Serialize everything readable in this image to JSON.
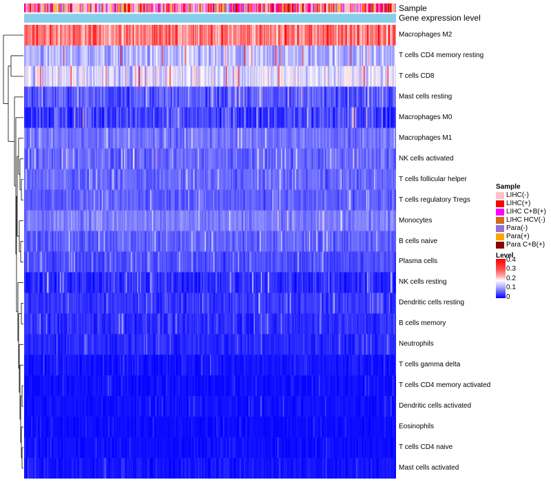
{
  "annotations": {
    "sample_label": "Sample",
    "gene_label": "Gene expression level"
  },
  "legend": {
    "sample_title": "Sample",
    "sample_items": [
      {
        "label": "LIHC(-)",
        "color": "#ffc0cb"
      },
      {
        "label": "LIHC(+)",
        "color": "#ff0000"
      },
      {
        "label": "LIHC C+B(+)",
        "color": "#ff00ff"
      },
      {
        "label": "LIHC HCV(-)",
        "color": "#d2691e"
      },
      {
        "label": "Para(-)",
        "color": "#9370db"
      },
      {
        "label": "Para(+)",
        "color": "#ffa500"
      },
      {
        "label": "Para C+B(+)",
        "color": "#8b0000"
      }
    ],
    "level_title": "Level",
    "level_ticks": [
      "0.4",
      "0.3",
      "0.2",
      "0.1",
      "0"
    ]
  },
  "chart_data": {
    "type": "heatmap",
    "title": "",
    "color_scale": {
      "low": "#0000ff",
      "mid": "#ffffff",
      "high": "#ff0000",
      "range": [
        0,
        0.4
      ]
    },
    "annotation_gene_color": "#87ceeb",
    "rows": [
      {
        "name": "Macrophages M2",
        "mean": 0.3,
        "spread": 0.08
      },
      {
        "name": "T cells CD4 memory resting",
        "mean": 0.14,
        "spread": 0.06
      },
      {
        "name": "T cells CD8",
        "mean": 0.18,
        "spread": 0.07
      },
      {
        "name": "Mast cells resting",
        "mean": 0.07,
        "spread": 0.05
      },
      {
        "name": "Macrophages M0",
        "mean": 0.05,
        "spread": 0.06
      },
      {
        "name": "Macrophages M1",
        "mean": 0.09,
        "spread": 0.035
      },
      {
        "name": "NK cells activated",
        "mean": 0.08,
        "spread": 0.04
      },
      {
        "name": "T cells follicular helper",
        "mean": 0.08,
        "spread": 0.035
      },
      {
        "name": "T cells regulatory  Tregs",
        "mean": 0.075,
        "spread": 0.035
      },
      {
        "name": "Monocytes",
        "mean": 0.1,
        "spread": 0.035
      },
      {
        "name": "B cells naive",
        "mean": 0.075,
        "spread": 0.035
      },
      {
        "name": "Plasma cells",
        "mean": 0.06,
        "spread": 0.03
      },
      {
        "name": "NK cells resting",
        "mean": 0.035,
        "spread": 0.04
      },
      {
        "name": "Dendritic cells resting",
        "mean": 0.04,
        "spread": 0.03
      },
      {
        "name": "B cells memory",
        "mean": 0.035,
        "spread": 0.03
      },
      {
        "name": "Neutrophils",
        "mean": 0.03,
        "spread": 0.025
      },
      {
        "name": "T cells gamma delta",
        "mean": 0.015,
        "spread": 0.02
      },
      {
        "name": "T cells CD4 memory activated",
        "mean": 0.01,
        "spread": 0.015
      },
      {
        "name": "Dendritic cells activated",
        "mean": 0.012,
        "spread": 0.015
      },
      {
        "name": "Eosinophils",
        "mean": 0.008,
        "spread": 0.012
      },
      {
        "name": "T cells CD4 naive",
        "mean": 0.01,
        "spread": 0.015
      },
      {
        "name": "Mast cells activated",
        "mean": 0.015,
        "spread": 0.02
      }
    ],
    "n_samples": 424,
    "sample_group_weights": {
      "LIHC(-)": 0.35,
      "LIHC(+)": 0.2,
      "LIHC C+B(+)": 0.2,
      "LIHC HCV(-)": 0.08,
      "Para(-)": 0.1,
      "Para(+)": 0.04,
      "Para C+B(+)": 0.03
    }
  }
}
